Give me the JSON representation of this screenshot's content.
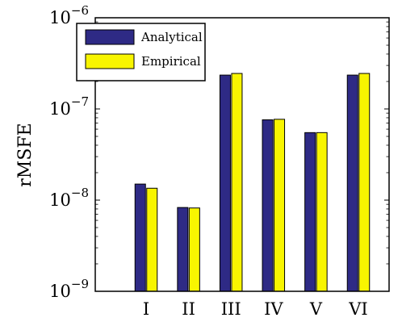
{
  "chart_data": {
    "type": "bar",
    "yscale": "log",
    "ylim": [
      1e-09,
      1e-06
    ],
    "ylabel": "rMSFE",
    "xlabel": "",
    "categories": [
      "I",
      "II",
      "III",
      "IV",
      "V",
      "VI"
    ],
    "yticks": [
      {
        "value": 1e-09,
        "base": "10",
        "exp": "−9"
      },
      {
        "value": 1e-08,
        "base": "10",
        "exp": "−8"
      },
      {
        "value": 1e-07,
        "base": "10",
        "exp": "−7"
      },
      {
        "value": 1e-06,
        "base": "10",
        "exp": "−6"
      }
    ],
    "series": [
      {
        "name": "Analytical",
        "color": "#2e2a85",
        "values": [
          1.5e-08,
          8.3e-09,
          2.35e-07,
          7.6e-08,
          5.5e-08,
          2.35e-07
        ]
      },
      {
        "name": "Empirical",
        "color": "#f8f500",
        "values": [
          1.35e-08,
          8.2e-09,
          2.45e-07,
          7.7e-08,
          5.5e-08,
          2.45e-07
        ]
      }
    ],
    "legend_position": "top-left",
    "grid": false
  }
}
